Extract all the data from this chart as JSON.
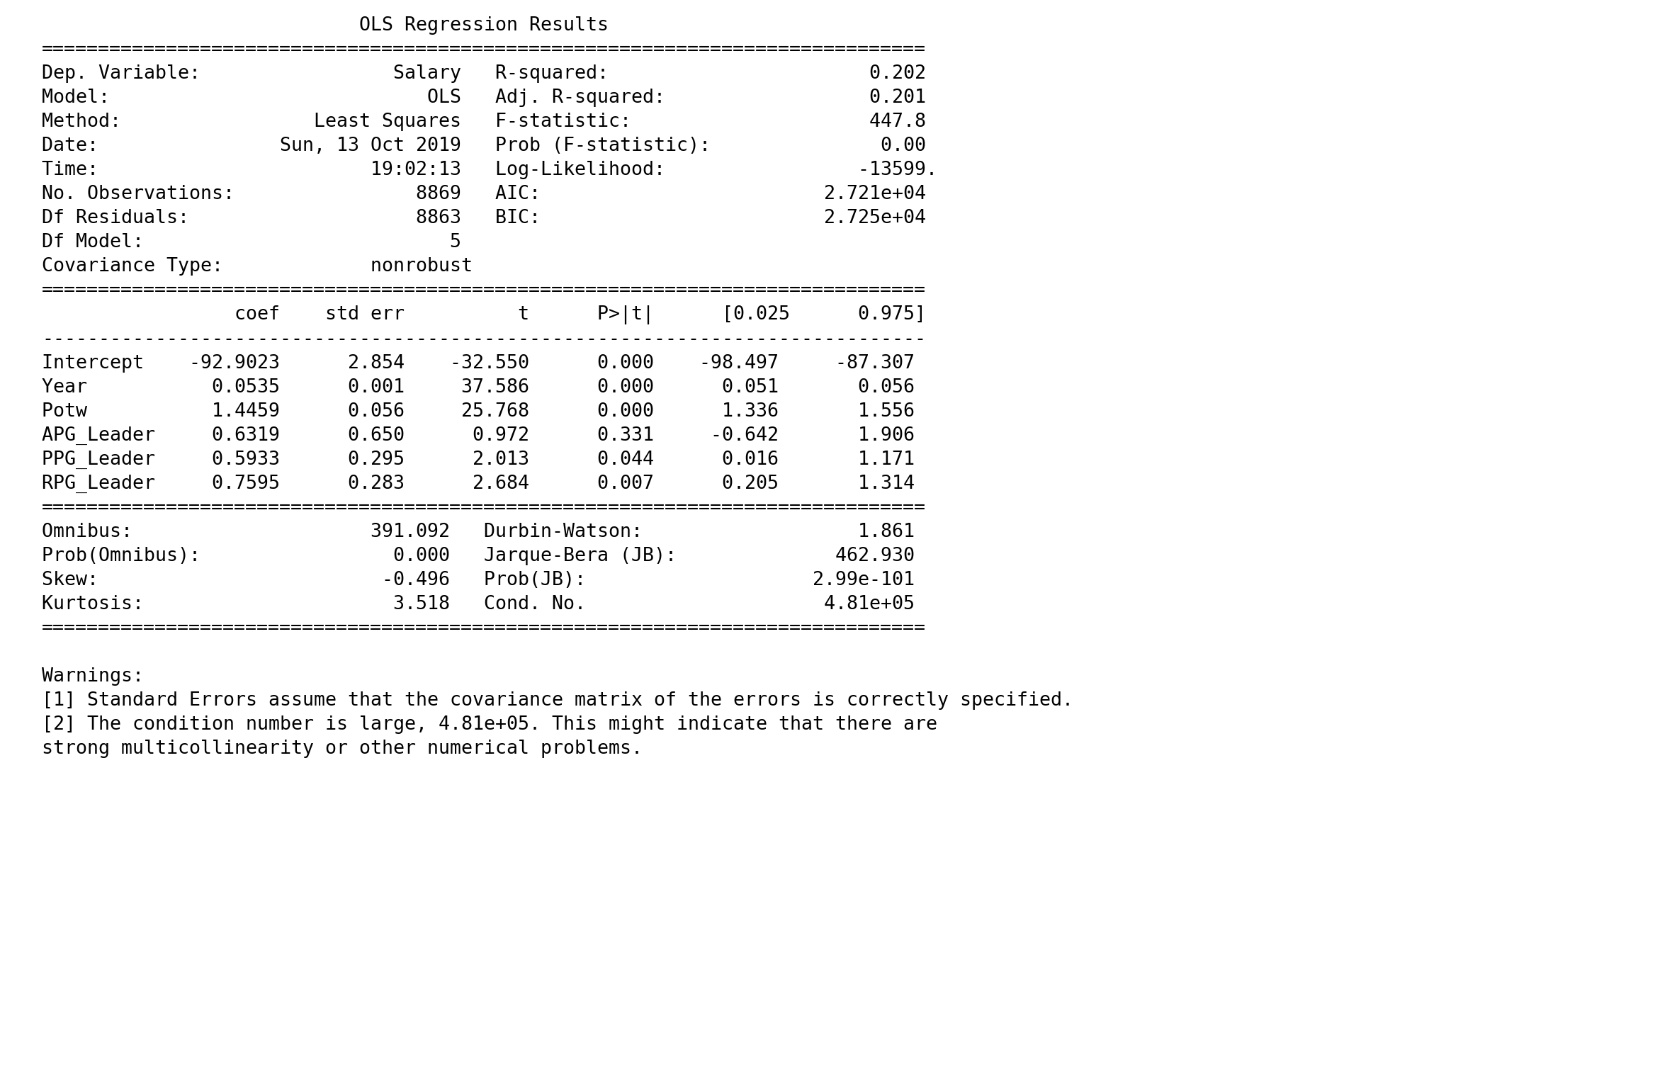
{
  "bg_color": "#ffffff",
  "text_color": "#000000",
  "font_size": 19.2,
  "content": [
    "                            OLS Regression Results                            ",
    "==============================================================================",
    "Dep. Variable:                 Salary   R-squared:                       0.202",
    "Model:                            OLS   Adj. R-squared:                  0.201",
    "Method:                 Least Squares   F-statistic:                     447.8",
    "Date:                Sun, 13 Oct 2019   Prob (F-statistic):               0.00",
    "Time:                        19:02:13   Log-Likelihood:                 -13599.",
    "No. Observations:                8869   AIC:                         2.721e+04",
    "Df Residuals:                    8863   BIC:                         2.725e+04",
    "Df Model:                           5                                         ",
    "Covariance Type:             nonrobust                                         ",
    "==============================================================================",
    "                 coef    std err          t      P>|t|      [0.025      0.975]",
    "------------------------------------------------------------------------------",
    "Intercept    -92.9023      2.854    -32.550      0.000    -98.497     -87.307 ",
    "Year           0.0535      0.001     37.586      0.000      0.051       0.056 ",
    "Potw           1.4459      0.056     25.768      0.000      1.336       1.556 ",
    "APG_Leader     0.6319      0.650      0.972      0.331     -0.642       1.906 ",
    "PPG_Leader     0.5933      0.295      2.013      0.044      0.016       1.171 ",
    "RPG_Leader     0.7595      0.283      2.684      0.007      0.205       1.314 ",
    "==============================================================================",
    "Omnibus:                     391.092   Durbin-Watson:                   1.861",
    "Prob(Omnibus):                 0.000   Jarque-Bera (JB):              462.930",
    "Skew:                         -0.496   Prob(JB):                    2.99e-101",
    "Kurtosis:                      3.518   Cond. No.                     4.81e+05",
    "==============================================================================",
    "",
    "Warnings:",
    "[1] Standard Errors assume that the covariance matrix of the errors is correctly specified.",
    "[2] The condition number is large, 4.81e+05. This might indicate that there are",
    "strong multicollinearity or other numerical problems."
  ]
}
